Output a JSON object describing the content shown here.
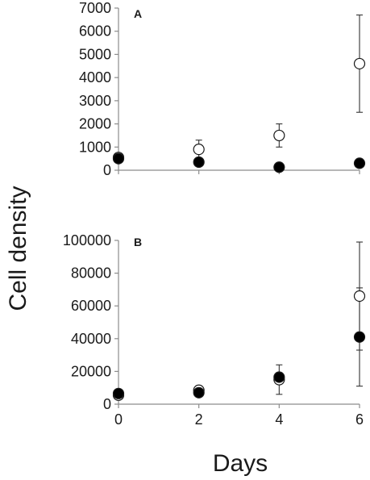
{
  "figure": {
    "ylabel": "Cell density",
    "xlabel": "Days"
  },
  "colors": {
    "axis": "#8c8c8c",
    "marker_stroke": "#1a1a1a",
    "open_fill": "#ffffff",
    "filled_fill": "#000000"
  },
  "chart_data": [
    {
      "type": "scatter",
      "panel_label": "A",
      "x": [
        0,
        2,
        4,
        6
      ],
      "xlim": [
        0,
        6
      ],
      "ylim": [
        0,
        7000
      ],
      "yticks": [
        0,
        1000,
        2000,
        3000,
        4000,
        5000,
        6000,
        7000
      ],
      "ytick_labels": [
        "0",
        "1000",
        "2000",
        "3000",
        "4000",
        "5000",
        "6000",
        "7000"
      ],
      "show_xtick_labels": false,
      "grid": false,
      "series": [
        {
          "marker": "open-circle",
          "values": [
            550,
            900,
            1500,
            4600
          ],
          "error": [
            null,
            400,
            500,
            2100
          ]
        },
        {
          "marker": "filled-circle",
          "values": [
            500,
            350,
            130,
            300
          ],
          "error": [
            null,
            null,
            null,
            null
          ]
        }
      ]
    },
    {
      "type": "scatter",
      "panel_label": "B",
      "x": [
        0,
        2,
        4,
        6
      ],
      "xlim": [
        0,
        6
      ],
      "ylim": [
        0,
        100000
      ],
      "yticks": [
        0,
        20000,
        40000,
        60000,
        80000,
        100000
      ],
      "ytick_labels": [
        "0",
        "20000",
        "40000",
        "60000",
        "80000",
        "100000"
      ],
      "xticks": [
        0,
        2,
        4,
        6
      ],
      "xtick_labels": [
        "0",
        "2",
        "4",
        "6"
      ],
      "show_xtick_labels": true,
      "grid": false,
      "series": [
        {
          "marker": "open-circle",
          "values": [
            5500,
            8500,
            15000,
            66000
          ],
          "error": [
            null,
            null,
            9000,
            33000
          ]
        },
        {
          "marker": "filled-circle",
          "values": [
            6500,
            7000,
            16500,
            41000
          ],
          "error": [
            null,
            null,
            null,
            30000
          ]
        }
      ]
    }
  ]
}
